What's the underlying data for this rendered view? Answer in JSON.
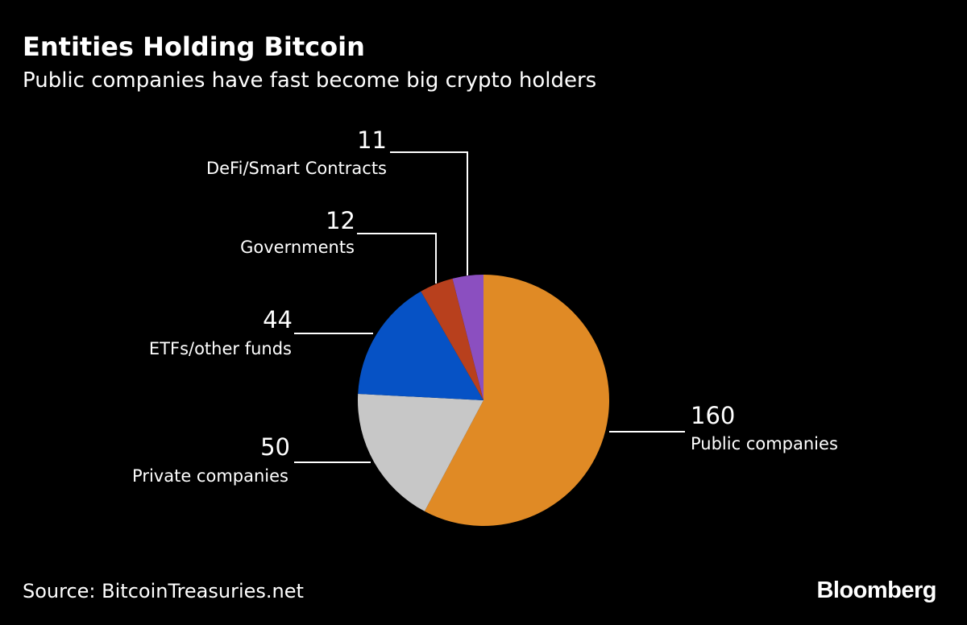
{
  "header": {
    "title": "Entities Holding Bitcoin",
    "subtitle": "Public companies have fast become big crypto holders"
  },
  "chart_data": {
    "type": "pie",
    "categories": [
      "Public companies",
      "Private companies",
      "ETFs/other funds",
      "Governments",
      "DeFi/Smart Contracts"
    ],
    "values": [
      160,
      50,
      44,
      12,
      11
    ],
    "colors": [
      "#e08a25",
      "#c7c7c7",
      "#0652c5",
      "#b8401d",
      "#8b4fc0"
    ],
    "data_labels": [
      "160",
      "50",
      "44",
      "12",
      "11"
    ],
    "start": "12 o'clock",
    "direction": "clockwise"
  },
  "footer": {
    "source": "Source: BitcoinTreasuries.net",
    "brand": "Bloomberg"
  }
}
